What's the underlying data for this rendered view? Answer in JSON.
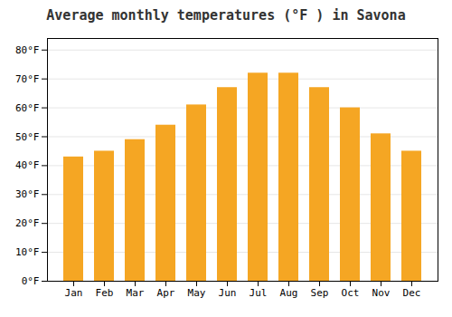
{
  "chart_data": {
    "type": "bar",
    "title": "Average monthly temperatures (°F ) in Savona",
    "categories": [
      "Jan",
      "Feb",
      "Mar",
      "Apr",
      "May",
      "Jun",
      "Jul",
      "Aug",
      "Sep",
      "Oct",
      "Nov",
      "Dec"
    ],
    "values": [
      43,
      45,
      49,
      54,
      61,
      67,
      72,
      72,
      67,
      60,
      51,
      45
    ],
    "color": "#F5A623",
    "ylim": [
      0,
      84
    ],
    "yticks": [
      {
        "value": 0,
        "label": "0°F"
      },
      {
        "value": 10,
        "label": "10°F"
      },
      {
        "value": 20,
        "label": "20°F"
      },
      {
        "value": 30,
        "label": "30°F"
      },
      {
        "value": 40,
        "label": "40°F"
      },
      {
        "value": 50,
        "label": "50°F"
      },
      {
        "value": 60,
        "label": "60°F"
      },
      {
        "value": 70,
        "label": "70°F"
      },
      {
        "value": 80,
        "label": "80°F"
      }
    ],
    "grid": true
  }
}
